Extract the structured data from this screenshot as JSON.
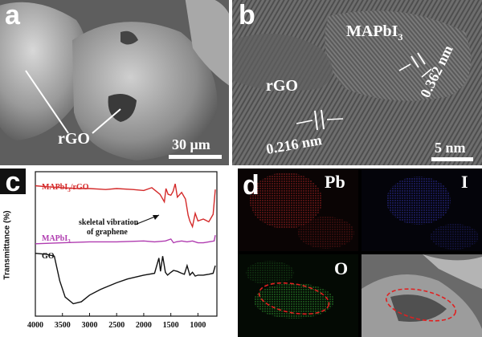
{
  "figure": {
    "panel_a": {
      "letter": "a",
      "label": "rGO",
      "scale_bar": "30 μm"
    },
    "panel_b": {
      "letter": "b",
      "label_mapbi": "MAPbI",
      "label_mapbi_sub": "3",
      "label_rgo": "rGO",
      "spacing_1": "0.362 nm",
      "spacing_2": "0.216 nm",
      "scale_bar": "5 nm"
    },
    "panel_c": {
      "letter": "c",
      "y_axis_label": "Transmittance (%)",
      "annotation_line1": "skeletal vibration",
      "annotation_line2": "of graphene",
      "colors": {
        "mapbi_rgo": "#d42a2a",
        "mapbi": "#b03cb0",
        "go": "#111111"
      }
    },
    "panel_d": {
      "letter": "d",
      "elements": [
        "Pb",
        "I",
        "O"
      ],
      "colors": {
        "pb": "#c82828",
        "i": "#3838c8",
        "o": "#38b838",
        "ellipse": "#e02020"
      }
    }
  },
  "chart_data": {
    "type": "line",
    "x_ticks": [
      4000,
      3500,
      3000,
      2500,
      2000,
      1500,
      1000
    ],
    "xlim": [
      4000,
      650
    ],
    "ylabel": "Transmittance (%)",
    "series": [
      {
        "name": "MAPbI3/rGO",
        "label_main": "MAPbI",
        "label_sub": "3",
        "label_tail": "/rGO",
        "x": [
          4000,
          3800,
          3500,
          3200,
          3000,
          2700,
          2500,
          2200,
          2000,
          1850,
          1700,
          1620,
          1590,
          1550,
          1500,
          1460,
          1420,
          1380,
          1300,
          1230,
          1180,
          1150,
          1100,
          1050,
          1000,
          900,
          800,
          720,
          680
        ],
        "y": [
          92,
          91,
          90,
          89,
          89,
          88,
          89,
          88,
          87,
          90,
          83,
          75,
          89,
          83,
          82,
          86,
          94,
          80,
          85,
          78,
          61,
          55,
          49,
          63,
          55,
          57,
          54,
          62,
          88
        ]
      },
      {
        "name": "MAPbI3",
        "label_main": "MAPbI",
        "label_sub": "3",
        "label_tail": "",
        "x": [
          4000,
          3500,
          3000,
          2500,
          2000,
          1800,
          1600,
          1500,
          1450,
          1400,
          1300,
          1200,
          1100,
          1000,
          900,
          800,
          700,
          680
        ],
        "y": [
          31,
          32,
          33,
          33,
          34,
          33,
          34,
          36,
          32,
          33,
          34,
          33,
          34,
          32,
          32,
          33,
          34,
          40
        ]
      },
      {
        "name": "GO",
        "label_main": "GO",
        "label_sub": "",
        "label_tail": "",
        "x": [
          4000,
          3800,
          3650,
          3550,
          3450,
          3300,
          3150,
          3000,
          2800,
          2500,
          2300,
          2000,
          1800,
          1720,
          1690,
          1650,
          1600,
          1560,
          1500,
          1450,
          1380,
          1300,
          1250,
          1200,
          1150,
          1100,
          1050,
          1000,
          900,
          800,
          720,
          680
        ],
        "y": [
          21,
          20,
          18,
          -8,
          -25,
          -32,
          -30,
          -23,
          -17,
          -10,
          -6,
          -2,
          0,
          16,
          2,
          18,
          1,
          -2,
          1,
          3,
          2,
          0,
          -1,
          8,
          -2,
          1,
          -3,
          -2,
          -2,
          -1,
          0,
          8
        ]
      }
    ]
  }
}
